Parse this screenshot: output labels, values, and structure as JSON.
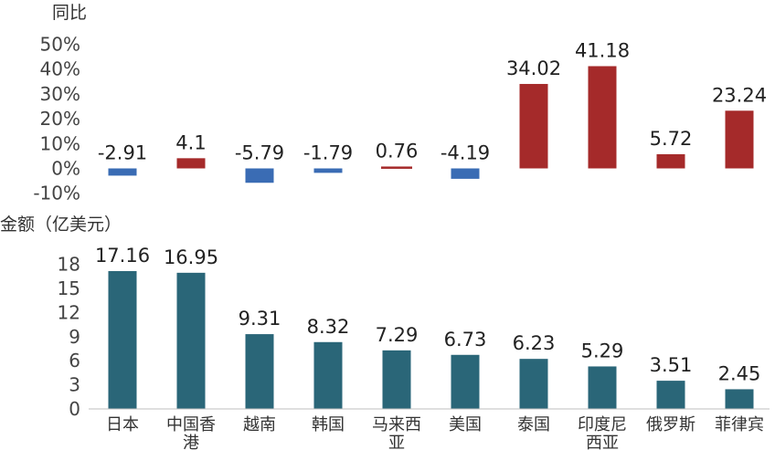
{
  "chart_data": [
    {
      "type": "bar",
      "ylabel": "同比",
      "categories": [
        "日本",
        "中国香港",
        "越南",
        "韩国",
        "马来西亚",
        "美国",
        "泰国",
        "印度尼西亚",
        "俄罗斯",
        "菲律宾"
      ],
      "values": [
        -2.91,
        4.1,
        -5.79,
        -1.79,
        0.76,
        -4.19,
        34.02,
        41.18,
        5.72,
        23.24
      ],
      "value_labels": [
        "-2.91",
        "4.1",
        "-5.79",
        "-1.79",
        "0.76",
        "-4.19",
        "34.02",
        "41.18",
        "5.72",
        "23.24"
      ],
      "yticks": [
        "50%",
        "40%",
        "30%",
        "20%",
        "10%",
        "0%",
        "-10%"
      ],
      "ylim": [
        -10,
        50
      ],
      "colors": {
        "positive": "#a52a2a",
        "negative": "#3a6cb4"
      },
      "grid": false
    },
    {
      "type": "bar",
      "ylabel": "金额（亿美元）",
      "categories": [
        "日本",
        "中国香港",
        "越南",
        "韩国",
        "马来西亚",
        "美国",
        "泰国",
        "印度尼西亚",
        "俄罗斯",
        "菲律宾"
      ],
      "category_lines": [
        [
          "日本"
        ],
        [
          "中国香",
          "港"
        ],
        [
          "越南"
        ],
        [
          "韩国"
        ],
        [
          "马来西",
          "亚"
        ],
        [
          "美国"
        ],
        [
          "泰国"
        ],
        [
          "印度尼",
          "西亚"
        ],
        [
          "俄罗斯"
        ],
        [
          "菲律宾"
        ]
      ],
      "values": [
        17.16,
        16.95,
        9.31,
        8.32,
        7.29,
        6.73,
        6.23,
        5.29,
        3.51,
        2.45
      ],
      "value_labels": [
        "17.16",
        "16.95",
        "9.31",
        "8.32",
        "7.29",
        "6.73",
        "6.23",
        "5.29",
        "3.51",
        "2.45"
      ],
      "yticks": [
        "18",
        "15",
        "12",
        "9",
        "6",
        "3",
        "0"
      ],
      "ylim": [
        0,
        18
      ],
      "colors": {
        "bar": "#2a6678"
      },
      "grid": false
    }
  ]
}
